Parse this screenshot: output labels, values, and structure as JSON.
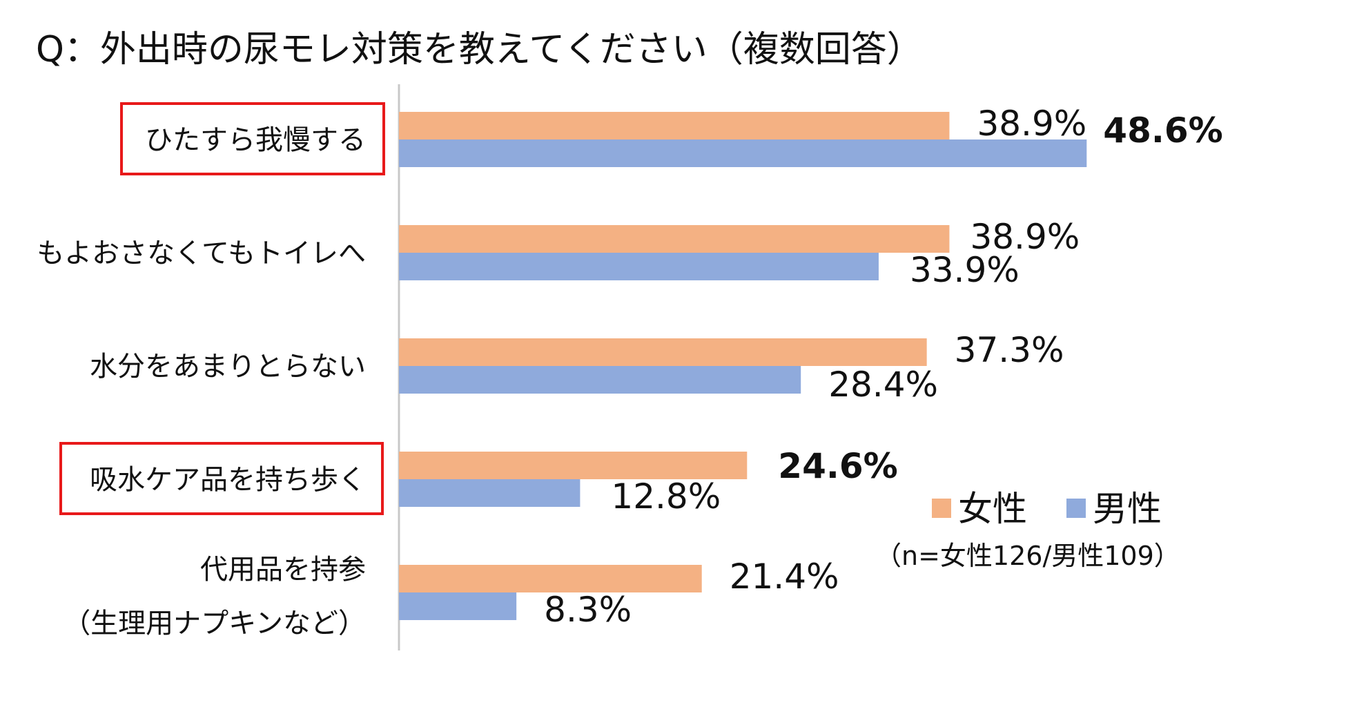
{
  "title": "Q：外出時の尿モレ対策を教えてください（複数回答）",
  "note": "（n=女性126/男性109）",
  "colors": {
    "female": "#F4B183",
    "male": "#8FAADC",
    "highlight": "#E8191A",
    "axis": "#C8C8C8"
  },
  "chart_data": {
    "type": "bar",
    "orientation": "horizontal",
    "title": "Q：外出時の尿モレ対策を教えてください（複数回答）",
    "categories": [
      [
        "ひたすら我慢する"
      ],
      [
        "もよおさなくてもトイレへ"
      ],
      [
        "水分をあまりとらない"
      ],
      [
        "吸水ケア品を持ち歩く"
      ],
      [
        "代用品を持参",
        "（生理用ナプキンなど）"
      ]
    ],
    "boxed_categories": [
      0,
      3
    ],
    "series": [
      {
        "name": "女性",
        "values": [
          38.9,
          38.9,
          37.3,
          24.6,
          21.4
        ],
        "labels": [
          "38.9%",
          "38.9%",
          "37.3%",
          "24.6%",
          "21.4%"
        ],
        "highlight": [
          false,
          false,
          false,
          true,
          false
        ]
      },
      {
        "name": "男性",
        "values": [
          48.6,
          33.9,
          28.4,
          12.8,
          8.3
        ],
        "labels": [
          "48.6%",
          "33.9%",
          "28.4%",
          "12.8%",
          "8.3%"
        ],
        "highlight": [
          true,
          false,
          false,
          false,
          false
        ]
      }
    ],
    "xlim": [
      0,
      50
    ],
    "unit": "%",
    "legend_position": "right",
    "grid": false
  }
}
